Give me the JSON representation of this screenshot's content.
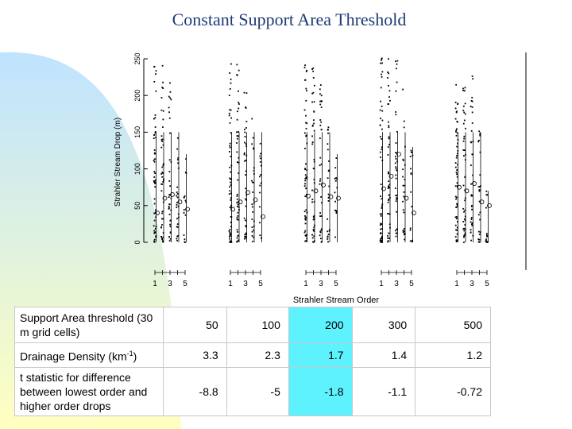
{
  "slide": {
    "title": "Constant Support Area Threshold"
  },
  "colors": {
    "title": "#1f3a78",
    "highlight": "#5ef2ff",
    "gradient_top": "#bfe3ff",
    "gradient_bottom": "#ffffc0"
  },
  "chart_data": {
    "type": "scatter",
    "xlabel": "Strahler Stream Order",
    "ylabel": "Strahler Stream Drop (m)",
    "ylim": [
      0,
      250
    ],
    "yticks": [
      0,
      50,
      100,
      150,
      200,
      250
    ],
    "xticks": [
      "1",
      "3",
      "5"
    ],
    "orders": [
      1,
      2,
      3,
      4,
      5
    ],
    "panels": [
      {
        "threshold": "50",
        "mean_drop": [
          40,
          60,
          65,
          55,
          45
        ],
        "max_drop": [
          255,
          250,
          230,
          150,
          120
        ]
      },
      {
        "threshold": "100",
        "mean_drop": [
          45,
          55,
          68,
          58,
          35
        ],
        "max_drop": [
          255,
          245,
          210,
          175,
          150
        ]
      },
      {
        "threshold": "200",
        "mean_drop": [
          63,
          70,
          78,
          62,
          60
        ],
        "max_drop": [
          250,
          240,
          220,
          160,
          120
        ]
      },
      {
        "threshold": "300",
        "mean_drop": [
          73,
          90,
          120,
          60,
          40
        ],
        "max_drop": [
          255,
          255,
          250,
          210,
          130
        ]
      },
      {
        "threshold": "500",
        "mean_drop": [
          75,
          70,
          80,
          55,
          50
        ],
        "max_drop": [
          215,
          230,
          240,
          200,
          70
        ]
      }
    ]
  },
  "table": {
    "headers": [
      "Support Area threshold (30 m grid cells)",
      "50",
      "100",
      "200",
      "300",
      "500"
    ],
    "density_label": "Drainage Density (km",
    "density_exp": "-1",
    "density_close": ")",
    "density": [
      "3.3",
      "2.3",
      "1.7",
      "1.4",
      "1.2"
    ],
    "tstat_label": "t statistic for difference between lowest order and higher order drops",
    "tstat": [
      "-8.8",
      "-5",
      "-1.8",
      "-1.1",
      "-0.72"
    ],
    "highlight_column": "200"
  }
}
